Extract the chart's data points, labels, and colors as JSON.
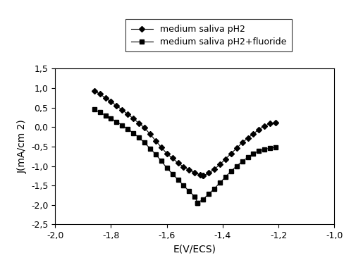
{
  "title": "",
  "xlabel": "E(V/ECS)",
  "ylabel": "J(mA/cm 2)",
  "xlim": [
    -2,
    -1
  ],
  "ylim": [
    -2.5,
    1.5
  ],
  "xticks": [
    -2,
    -1.8,
    -1.6,
    -1.4,
    -1.2,
    -1
  ],
  "yticks": [
    -2.5,
    -2,
    -1.5,
    -1,
    -0.5,
    0,
    0.5,
    1,
    1.5
  ],
  "legend1_label": "medium saliva pH2",
  "legend2_label": "medium saliva pH2+fluoride",
  "line_color": "#000000",
  "marker1": "D",
  "marker2": "s",
  "curve1_cathodic_E": [
    -1.86,
    -1.84,
    -1.82,
    -1.8,
    -1.78,
    -1.76,
    -1.74,
    -1.72,
    -1.7,
    -1.68,
    -1.66,
    -1.64,
    -1.62,
    -1.6,
    -1.58,
    -1.56,
    -1.54,
    -1.52,
    -1.5,
    -1.48,
    -1.47
  ],
  "curve1_cathodic_J": [
    0.93,
    0.85,
    0.75,
    0.65,
    0.55,
    0.44,
    0.33,
    0.22,
    0.1,
    -0.02,
    -0.18,
    -0.35,
    -0.52,
    -0.68,
    -0.8,
    -0.92,
    -1.02,
    -1.1,
    -1.17,
    -1.22,
    -1.25
  ],
  "curve1_anodic_E": [
    -1.47,
    -1.45,
    -1.43,
    -1.41,
    -1.39,
    -1.37,
    -1.35,
    -1.33,
    -1.31,
    -1.29,
    -1.27,
    -1.25,
    -1.23,
    -1.21
  ],
  "curve1_anodic_J": [
    -1.25,
    -1.18,
    -1.08,
    -0.96,
    -0.82,
    -0.68,
    -0.54,
    -0.4,
    -0.28,
    -0.17,
    -0.06,
    0.03,
    0.09,
    0.12
  ],
  "curve2_cathodic_E": [
    -1.86,
    -1.84,
    -1.82,
    -1.8,
    -1.78,
    -1.76,
    -1.74,
    -1.72,
    -1.7,
    -1.68,
    -1.66,
    -1.64,
    -1.62,
    -1.6,
    -1.58,
    -1.56,
    -1.54,
    -1.52,
    -1.5,
    -1.49
  ],
  "curve2_cathodic_J": [
    0.45,
    0.38,
    0.3,
    0.22,
    0.14,
    0.05,
    -0.05,
    -0.15,
    -0.27,
    -0.4,
    -0.55,
    -0.7,
    -0.87,
    -1.05,
    -1.2,
    -1.35,
    -1.5,
    -1.65,
    -1.78,
    -1.95
  ],
  "curve2_anodic_E": [
    -1.49,
    -1.47,
    -1.45,
    -1.43,
    -1.41,
    -1.39,
    -1.37,
    -1.35,
    -1.33,
    -1.31,
    -1.29,
    -1.27,
    -1.25,
    -1.23,
    -1.21
  ],
  "curve2_anodic_J": [
    -1.95,
    -1.85,
    -1.72,
    -1.58,
    -1.43,
    -1.28,
    -1.13,
    -1.0,
    -0.88,
    -0.78,
    -0.68,
    -0.61,
    -0.57,
    -0.54,
    -0.52
  ],
  "background_color": "#ffffff",
  "marker_size": 4,
  "linewidth": 0.8,
  "legend_fontsize": 9,
  "tick_fontsize": 9,
  "axis_label_fontsize": 10
}
